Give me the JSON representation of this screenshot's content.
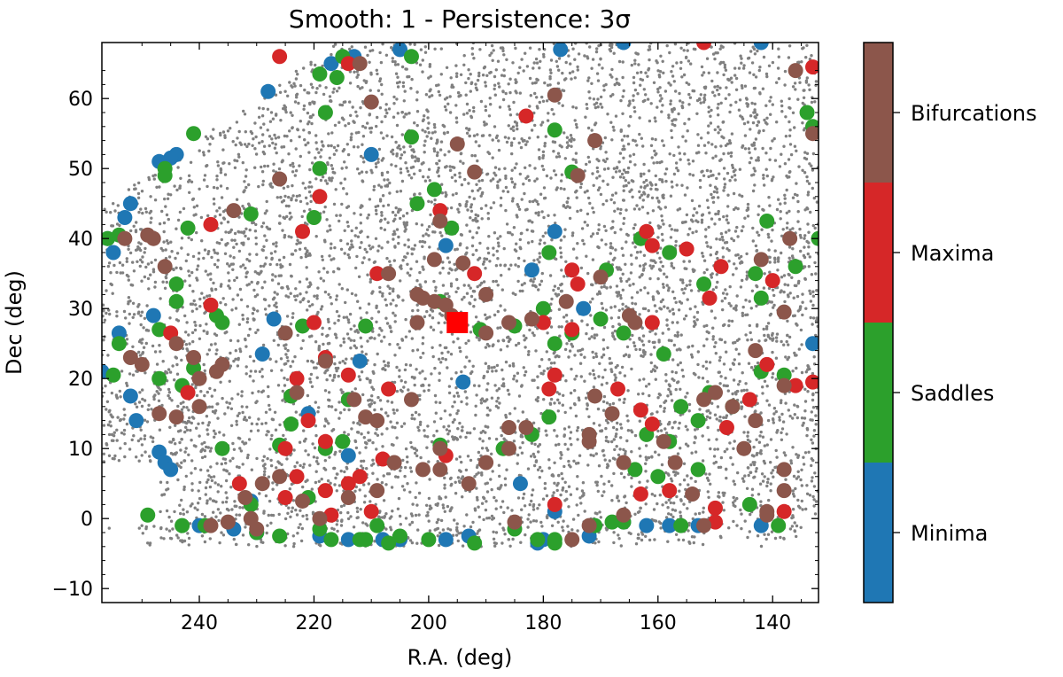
{
  "chart_data": {
    "type": "scatter",
    "title": "Smooth: 1 - Persistence: 3σ",
    "xlabel": "R.A. (deg)",
    "ylabel": "Dec (deg)",
    "xlim": [
      257,
      132
    ],
    "ylim": [
      -12,
      68
    ],
    "x_ticks": [
      240,
      220,
      200,
      180,
      160,
      140
    ],
    "y_ticks": [
      -10,
      0,
      10,
      20,
      30,
      40,
      50,
      60
    ],
    "background_points_color": "#808080",
    "highlight_marker": {
      "ra": 195,
      "dec": 28,
      "color": "#ff0000",
      "shape": "square"
    },
    "colorbar": {
      "categories": [
        "Bifurcations",
        "Maxima",
        "Saddles",
        "Minima"
      ],
      "colors": [
        "#8c564b",
        "#d62728",
        "#2ca02c",
        "#1f77b4"
      ]
    },
    "series": [
      {
        "name": "Minima",
        "color": "#1f77b4",
        "points": [
          [
            256,
            40
          ],
          [
            255,
            38
          ],
          [
            253,
            43
          ],
          [
            252,
            45
          ],
          [
            244,
            52
          ],
          [
            245,
            51.5
          ],
          [
            247,
            51
          ],
          [
            228,
            61
          ],
          [
            217,
            65
          ],
          [
            213,
            66
          ],
          [
            205,
            67
          ],
          [
            177,
            67
          ],
          [
            166,
            68
          ],
          [
            142,
            68
          ],
          [
            254,
            26.5
          ],
          [
            248,
            29
          ],
          [
            227,
            28.5
          ],
          [
            229,
            23.5
          ],
          [
            212,
            22.5
          ],
          [
            221,
            15
          ],
          [
            214,
            9
          ],
          [
            231,
            2.5
          ],
          [
            252,
            17.5
          ],
          [
            251,
            14
          ],
          [
            247,
            9.5
          ],
          [
            246,
            8
          ],
          [
            245,
            7
          ],
          [
            210,
            52
          ],
          [
            197,
            39
          ],
          [
            182,
            35.5
          ],
          [
            178,
            41
          ],
          [
            173,
            30
          ],
          [
            194,
            19.5
          ],
          [
            184,
            5
          ],
          [
            178,
            1
          ],
          [
            240,
            -1
          ],
          [
            234,
            -1.5
          ],
          [
            230,
            -2
          ],
          [
            219,
            -2.5
          ],
          [
            214,
            -3
          ],
          [
            208,
            -3
          ],
          [
            205,
            -3
          ],
          [
            197,
            -3
          ],
          [
            193,
            -2.5
          ],
          [
            181,
            -3.5
          ],
          [
            180,
            -3
          ],
          [
            172,
            -2.5
          ],
          [
            166,
            -0.5
          ],
          [
            162,
            -1
          ],
          [
            158,
            -1
          ],
          [
            153,
            -1
          ],
          [
            142,
            -1
          ],
          [
            133,
            25
          ],
          [
            257,
            21
          ]
        ]
      },
      {
        "name": "Saddles",
        "color": "#2ca02c",
        "points": [
          [
            246,
            49
          ],
          [
            246,
            50
          ],
          [
            241,
            55
          ],
          [
            219,
            63.5
          ],
          [
            216,
            63
          ],
          [
            215,
            66
          ],
          [
            203,
            66
          ],
          [
            218,
            58
          ],
          [
            203,
            54.5
          ],
          [
            199,
            47
          ],
          [
            178,
            55.5
          ],
          [
            175,
            49.5
          ],
          [
            256,
            40
          ],
          [
            254,
            40.5
          ],
          [
            242,
            41.5
          ],
          [
            220,
            43
          ],
          [
            231,
            43.5
          ],
          [
            219,
            50
          ],
          [
            202,
            45
          ],
          [
            196,
            41.5
          ],
          [
            179,
            38
          ],
          [
            169,
            35.5
          ],
          [
            158,
            38
          ],
          [
            163,
            40
          ],
          [
            141,
            42.5
          ],
          [
            136,
            36
          ],
          [
            143,
            35
          ],
          [
            152,
            33.5
          ],
          [
            142,
            31.5
          ],
          [
            244,
            33.5
          ],
          [
            244,
            31
          ],
          [
            237,
            29
          ],
          [
            236,
            28
          ],
          [
            222,
            27.5
          ],
          [
            211,
            27.5
          ],
          [
            198,
            31
          ],
          [
            191,
            27
          ],
          [
            185,
            27.5
          ],
          [
            180,
            30
          ],
          [
            175,
            26.5
          ],
          [
            170,
            28.5
          ],
          [
            166,
            26.5
          ],
          [
            159,
            23.5
          ],
          [
            156,
            16
          ],
          [
            151,
            18
          ],
          [
            147,
            16
          ],
          [
            142,
            21
          ],
          [
            138,
            20.5
          ],
          [
            132,
            40
          ],
          [
            134,
            58
          ],
          [
            133,
            56
          ],
          [
            247,
            20
          ],
          [
            255,
            20.5
          ],
          [
            254,
            25
          ],
          [
            247,
            27
          ],
          [
            241,
            21.5
          ],
          [
            243,
            19
          ],
          [
            224,
            17.5
          ],
          [
            224,
            13.5
          ],
          [
            218,
            10
          ],
          [
            215,
            11
          ],
          [
            214,
            17
          ],
          [
            198,
            10.5
          ],
          [
            187,
            10
          ],
          [
            182,
            12
          ],
          [
            179,
            14.5
          ],
          [
            178,
            25
          ],
          [
            162,
            12
          ],
          [
            164,
            7
          ],
          [
            160,
            6
          ],
          [
            153,
            14
          ],
          [
            153,
            7
          ],
          [
            158,
            11
          ],
          [
            249,
            0.5
          ],
          [
            243,
            -1
          ],
          [
            239,
            -1
          ],
          [
            230,
            -2
          ],
          [
            226,
            -2.5
          ],
          [
            219,
            -1.5
          ],
          [
            217,
            -3
          ],
          [
            212,
            -3
          ],
          [
            211,
            -3
          ],
          [
            209,
            -1
          ],
          [
            207,
            -3.5
          ],
          [
            205,
            -2.5
          ],
          [
            200,
            -3
          ],
          [
            192,
            -3.5
          ],
          [
            185,
            -1.5
          ],
          [
            181,
            -3
          ],
          [
            178,
            -3
          ],
          [
            178,
            -3.5
          ],
          [
            171,
            -1
          ],
          [
            168,
            -0.5
          ],
          [
            166,
            -0.5
          ],
          [
            156,
            -1
          ],
          [
            144,
            2
          ],
          [
            139,
            -1
          ],
          [
            221,
            3
          ],
          [
            231,
            2
          ],
          [
            226,
            10.5
          ],
          [
            236,
            10
          ]
        ]
      },
      {
        "name": "Maxima",
        "color": "#d62728",
        "points": [
          [
            226,
            66
          ],
          [
            214,
            65
          ],
          [
            183,
            57.5
          ],
          [
            219,
            46
          ],
          [
            222,
            41
          ],
          [
            238,
            42
          ],
          [
            209,
            35
          ],
          [
            192,
            35
          ],
          [
            198,
            44
          ],
          [
            175,
            35.5
          ],
          [
            174,
            33.5
          ],
          [
            162,
            41
          ],
          [
            161,
            39
          ],
          [
            149,
            36
          ],
          [
            140,
            34
          ],
          [
            245,
            26.5
          ],
          [
            238,
            30.5
          ],
          [
            220,
            28
          ],
          [
            180,
            28
          ],
          [
            175,
            27
          ],
          [
            161,
            28
          ],
          [
            151,
            31.5
          ],
          [
            218,
            23
          ],
          [
            214,
            20.5
          ],
          [
            207,
            18.5
          ],
          [
            223,
            20
          ],
          [
            221,
            14
          ],
          [
            225,
            10
          ],
          [
            218,
            11
          ],
          [
            208,
            8.5
          ],
          [
            197,
            9
          ],
          [
            179,
            18.5
          ],
          [
            178,
            20.5
          ],
          [
            167,
            18.5
          ],
          [
            163,
            15.5
          ],
          [
            161,
            13.5
          ],
          [
            148,
            13
          ],
          [
            144,
            17
          ],
          [
            136,
            19
          ],
          [
            141,
            22
          ],
          [
            212,
            6
          ],
          [
            223,
            6
          ],
          [
            233,
            5
          ],
          [
            214,
            5
          ],
          [
            218,
            4
          ],
          [
            225,
            3
          ],
          [
            217,
            0.5
          ],
          [
            210,
            1
          ],
          [
            178,
            2
          ],
          [
            163,
            3.5
          ],
          [
            158,
            4
          ],
          [
            150,
            -0.5
          ],
          [
            150,
            1.5
          ],
          [
            138,
            1
          ],
          [
            133,
            19.5
          ],
          [
            133,
            64.5
          ],
          [
            152,
            68
          ],
          [
            155,
            38.5
          ],
          [
            242,
            18
          ]
        ]
      },
      {
        "name": "Bifurcations",
        "color": "#8c564b",
        "points": [
          [
            226,
            48.5
          ],
          [
            210,
            59.5
          ],
          [
            212,
            65
          ],
          [
            195,
            53.5
          ],
          [
            192,
            49.5
          ],
          [
            178,
            60.5
          ],
          [
            171,
            54
          ],
          [
            174,
            49
          ],
          [
            198,
            42.5
          ],
          [
            199,
            37
          ],
          [
            194,
            36.5
          ],
          [
            190,
            32
          ],
          [
            202,
            32
          ],
          [
            201,
            31.5
          ],
          [
            199,
            31
          ],
          [
            197,
            30.5
          ],
          [
            196,
            29
          ],
          [
            202,
            28
          ],
          [
            190,
            26.5
          ],
          [
            186,
            28
          ],
          [
            182,
            28.5
          ],
          [
            176,
            31
          ],
          [
            170,
            34.5
          ],
          [
            165,
            29
          ],
          [
            164,
            28
          ],
          [
            142,
            37
          ],
          [
            138,
            29.5
          ],
          [
            137,
            40
          ],
          [
            136,
            64
          ],
          [
            133,
            55
          ],
          [
            253,
            40
          ],
          [
            249,
            40.5
          ],
          [
            248,
            40
          ],
          [
            234,
            44
          ],
          [
            246,
            36
          ],
          [
            207,
            35
          ],
          [
            252,
            23
          ],
          [
            250,
            22
          ],
          [
            237,
            21
          ],
          [
            244,
            25
          ],
          [
            240,
            20
          ],
          [
            241,
            23
          ],
          [
            244,
            14.5
          ],
          [
            240,
            16
          ],
          [
            247,
            15
          ],
          [
            236,
            22
          ],
          [
            225,
            26.5
          ],
          [
            223,
            18
          ],
          [
            218,
            22.5
          ],
          [
            213,
            17
          ],
          [
            211,
            14.5
          ],
          [
            209,
            14
          ],
          [
            198,
            10
          ],
          [
            203,
            17
          ],
          [
            198,
            7
          ],
          [
            193,
            5
          ],
          [
            190,
            8
          ],
          [
            186,
            10
          ],
          [
            186,
            13
          ],
          [
            183,
            13
          ],
          [
            171,
            17.5
          ],
          [
            172,
            12
          ],
          [
            172,
            11
          ],
          [
            166,
            8
          ],
          [
            168,
            15
          ],
          [
            159,
            11
          ],
          [
            152,
            17
          ],
          [
            150,
            18
          ],
          [
            147,
            16
          ],
          [
            143,
            24
          ],
          [
            143,
            14
          ],
          [
            138,
            19
          ],
          [
            226,
            6
          ],
          [
            229,
            5
          ],
          [
            232,
            3
          ],
          [
            231,
            0
          ],
          [
            219,
            0
          ],
          [
            222,
            2.5
          ],
          [
            214,
            3
          ],
          [
            209,
            4
          ],
          [
            206,
            8
          ],
          [
            201,
            7
          ],
          [
            152,
            -1
          ],
          [
            154,
            3.5
          ],
          [
            157,
            8
          ],
          [
            145,
            10
          ],
          [
            138,
            7
          ],
          [
            138,
            4
          ],
          [
            141,
            1
          ],
          [
            141,
            0.5
          ],
          [
            238,
            -1
          ],
          [
            235,
            -0.5
          ],
          [
            230,
            -1.5
          ],
          [
            185,
            -0.5
          ],
          [
            175,
            -3
          ],
          [
            172,
            -1
          ],
          [
            166,
            0.5
          ]
        ]
      }
    ]
  }
}
